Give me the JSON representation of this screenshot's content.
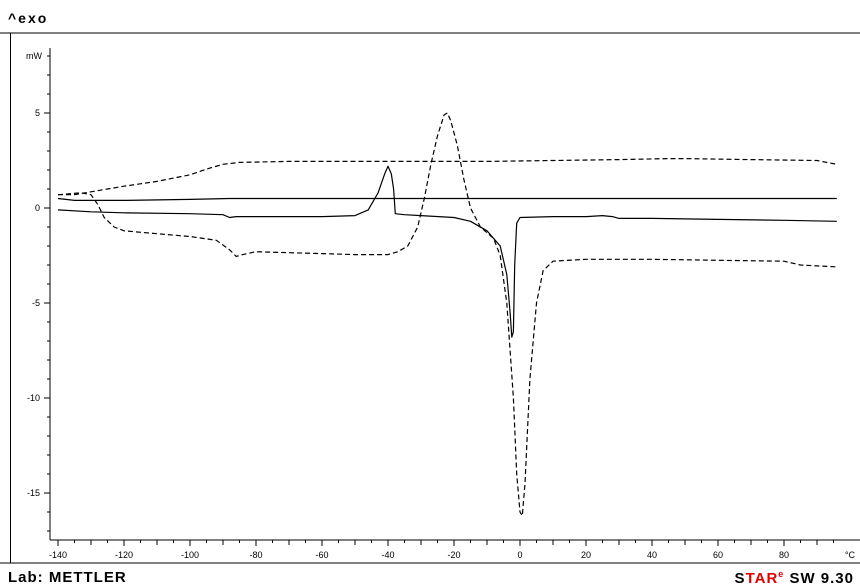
{
  "header": {
    "exo_label": "^exo"
  },
  "footer": {
    "lab_label": "Lab: METTLER",
    "software": {
      "star_s": "S",
      "star_tar": "TAR",
      "star_mark": "e",
      "star_version": " SW 9.30"
    }
  },
  "colors": {
    "accent_red": "#e00000",
    "line": "#000000"
  },
  "chart_data": {
    "type": "line",
    "title": "",
    "xlabel": "",
    "ylabel": "",
    "x_unit": "°C",
    "y_unit": "mW",
    "xlim": [
      -141,
      96
    ],
    "ylim": [
      -17.5,
      8.5
    ],
    "x_ticks": [
      -140,
      -120,
      -100,
      -80,
      -60,
      -40,
      -20,
      0,
      20,
      40,
      60,
      80
    ],
    "y_ticks": [
      5,
      0,
      -5,
      -10,
      -15
    ],
    "grid": false,
    "legend": "none",
    "series": [
      {
        "style": "solid",
        "points": [
          [
            -140,
            0.5
          ],
          [
            -135,
            0.4
          ],
          [
            -120,
            0.4
          ],
          [
            -100,
            0.45
          ],
          [
            -88,
            0.5
          ],
          [
            -80,
            0.5
          ],
          [
            -60,
            0.5
          ],
          [
            -40,
            0.5
          ],
          [
            -20,
            0.5
          ],
          [
            0,
            0.5
          ],
          [
            20,
            0.5
          ],
          [
            40,
            0.5
          ],
          [
            60,
            0.5
          ],
          [
            80,
            0.5
          ],
          [
            96,
            0.5
          ]
        ]
      },
      {
        "style": "solid",
        "points": [
          [
            -140,
            -0.1
          ],
          [
            -130,
            -0.2
          ],
          [
            -120,
            -0.25
          ],
          [
            -100,
            -0.3
          ],
          [
            -90,
            -0.35
          ],
          [
            -88,
            -0.5
          ],
          [
            -86,
            -0.45
          ],
          [
            -80,
            -0.45
          ],
          [
            -60,
            -0.45
          ],
          [
            -50,
            -0.4
          ],
          [
            -46,
            -0.1
          ],
          [
            -43,
            0.8
          ],
          [
            -41,
            1.8
          ],
          [
            -40,
            2.2
          ],
          [
            -39,
            1.8
          ],
          [
            -38.3,
            1.0
          ],
          [
            -37.8,
            -0.3
          ],
          [
            -35,
            -0.35
          ],
          [
            -30,
            -0.4
          ],
          [
            -20,
            -0.5
          ],
          [
            -15,
            -0.7
          ],
          [
            -10,
            -1.2
          ],
          [
            -6,
            -2.0
          ],
          [
            -4,
            -3.5
          ],
          [
            -3,
            -5.5
          ],
          [
            -2.5,
            -6.8
          ],
          [
            -2,
            -6.5
          ],
          [
            -1.6,
            -3.0
          ],
          [
            -1,
            -0.8
          ],
          [
            0,
            -0.5
          ],
          [
            10,
            -0.45
          ],
          [
            20,
            -0.45
          ],
          [
            25,
            -0.4
          ],
          [
            28,
            -0.45
          ],
          [
            30,
            -0.55
          ],
          [
            40,
            -0.55
          ],
          [
            60,
            -0.6
          ],
          [
            80,
            -0.65
          ],
          [
            96,
            -0.7
          ]
        ]
      },
      {
        "style": "dashed",
        "points": [
          [
            -140,
            0.7
          ],
          [
            -135,
            0.7
          ],
          [
            -130,
            0.85
          ],
          [
            -125,
            1.0
          ],
          [
            -120,
            1.15
          ],
          [
            -110,
            1.4
          ],
          [
            -100,
            1.75
          ],
          [
            -95,
            2.05
          ],
          [
            -90,
            2.3
          ],
          [
            -85,
            2.4
          ],
          [
            -70,
            2.45
          ],
          [
            -50,
            2.45
          ],
          [
            -30,
            2.45
          ],
          [
            -10,
            2.45
          ],
          [
            10,
            2.5
          ],
          [
            30,
            2.55
          ],
          [
            45,
            2.6
          ],
          [
            50,
            2.6
          ],
          [
            70,
            2.55
          ],
          [
            90,
            2.5
          ],
          [
            96,
            2.3
          ]
        ]
      },
      {
        "style": "dashed",
        "points": [
          [
            -140,
            0.7
          ],
          [
            -133,
            0.8
          ],
          [
            -130,
            0.7
          ],
          [
            -128,
            0.2
          ],
          [
            -126,
            -0.5
          ],
          [
            -123,
            -1.0
          ],
          [
            -120,
            -1.2
          ],
          [
            -110,
            -1.35
          ],
          [
            -100,
            -1.5
          ],
          [
            -92,
            -1.7
          ],
          [
            -88,
            -2.2
          ],
          [
            -86,
            -2.55
          ],
          [
            -84,
            -2.45
          ],
          [
            -80,
            -2.3
          ],
          [
            -70,
            -2.35
          ],
          [
            -60,
            -2.4
          ],
          [
            -50,
            -2.45
          ],
          [
            -40,
            -2.45
          ],
          [
            -37,
            -2.3
          ],
          [
            -34,
            -2.0
          ],
          [
            -31,
            -1.0
          ],
          [
            -29,
            0.5
          ],
          [
            -27,
            2.3
          ],
          [
            -25,
            3.8
          ],
          [
            -23,
            4.9
          ],
          [
            -22,
            5.0
          ],
          [
            -21,
            4.6
          ],
          [
            -19,
            3.3
          ],
          [
            -17,
            1.5
          ],
          [
            -15,
            0.0
          ],
          [
            -12,
            -1.0
          ],
          [
            -8,
            -1.6
          ],
          [
            -6,
            -2.5
          ],
          [
            -4,
            -5.0
          ],
          [
            -2,
            -10.0
          ],
          [
            -1,
            -14.0
          ],
          [
            0,
            -16.0
          ],
          [
            0.7,
            -16.2
          ],
          [
            1.5,
            -14.5
          ],
          [
            3,
            -9.0
          ],
          [
            5,
            -5.0
          ],
          [
            7,
            -3.3
          ],
          [
            10,
            -2.8
          ],
          [
            20,
            -2.7
          ],
          [
            40,
            -2.7
          ],
          [
            60,
            -2.75
          ],
          [
            80,
            -2.8
          ],
          [
            85,
            -3.0
          ],
          [
            96,
            -3.1
          ]
        ]
      }
    ]
  }
}
